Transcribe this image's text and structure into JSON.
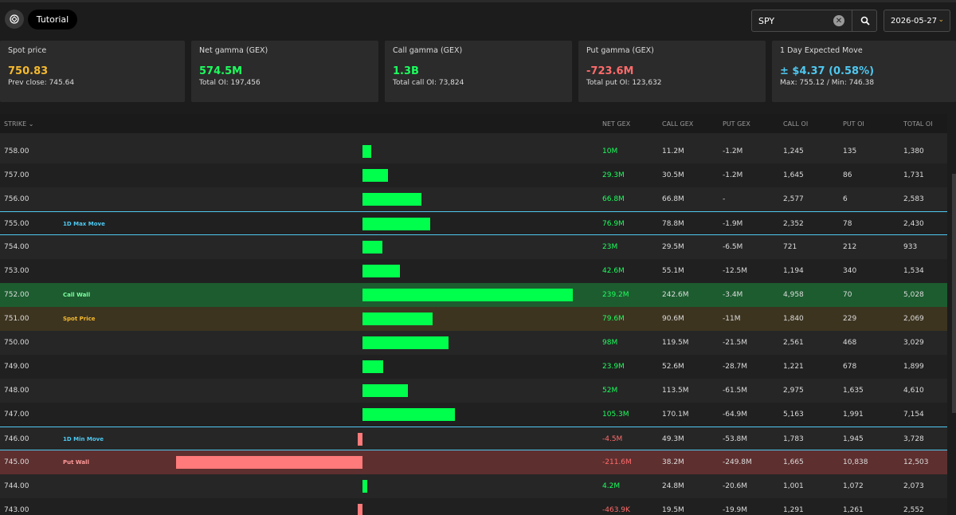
{
  "header": {
    "tutorial_label": "Tutorial",
    "search_value": "SPY",
    "date_value": "2026-05-27"
  },
  "cards": [
    {
      "label": "Spot price",
      "value": "750.83",
      "sub": "Prev close: 745.64",
      "color": "#f5b92e"
    },
    {
      "label": "Net gamma (GEX)",
      "value": "574.5M",
      "sub": "Total OI: 197,456",
      "color": "#1dff5e"
    },
    {
      "label": "Call gamma (GEX)",
      "value": "1.3B",
      "sub": "Total call OI: 73,824",
      "color": "#1dff5e"
    },
    {
      "label": "Put gamma (GEX)",
      "value": "-723.6M",
      "sub": "Total put OI: 123,632",
      "color": "#ff6b6b"
    },
    {
      "label": "1 Day Expected Move",
      "value": "± $4.37 (0.58%)",
      "sub": "Max: 755.12 / Min: 746.38",
      "color": "#4fc8f0"
    }
  ],
  "table": {
    "columns": [
      "STRIKE",
      "NET GEX",
      "CALL GEX",
      "PUT GEX",
      "CALL OI",
      "PUT OI",
      "TOTAL OI"
    ],
    "rows": [
      {
        "strike": "758.00",
        "tag": "",
        "net": "10M",
        "net_value": 10,
        "call": "11.2M",
        "put": "-1.2M",
        "coi": "1,245",
        "poi": "135",
        "toi": "1,380",
        "kind": "normal"
      },
      {
        "strike": "757.00",
        "tag": "",
        "net": "29.3M",
        "net_value": 29.3,
        "call": "30.5M",
        "put": "-1.2M",
        "coi": "1,645",
        "poi": "86",
        "toi": "1,731",
        "kind": "normal"
      },
      {
        "strike": "756.00",
        "tag": "",
        "net": "66.8M",
        "net_value": 66.8,
        "call": "66.8M",
        "put": "-",
        "coi": "2,577",
        "poi": "6",
        "toi": "2,583",
        "kind": "normal"
      },
      {
        "strike": "755.00",
        "tag": "1D Max Move",
        "net": "76.9M",
        "net_value": 76.9,
        "call": "78.8M",
        "put": "-1.9M",
        "coi": "2,352",
        "poi": "78",
        "toi": "2,430",
        "kind": "maxmove"
      },
      {
        "strike": "754.00",
        "tag": "",
        "net": "23M",
        "net_value": 23,
        "call": "29.5M",
        "put": "-6.5M",
        "coi": "721",
        "poi": "212",
        "toi": "933",
        "kind": "normal"
      },
      {
        "strike": "753.00",
        "tag": "",
        "net": "42.6M",
        "net_value": 42.6,
        "call": "55.1M",
        "put": "-12.5M",
        "coi": "1,194",
        "poi": "340",
        "toi": "1,534",
        "kind": "normal"
      },
      {
        "strike": "752.00",
        "tag": "Call Wall",
        "net": "239.2M",
        "net_value": 239.2,
        "call": "242.6M",
        "put": "-3.4M",
        "coi": "4,958",
        "poi": "70",
        "toi": "5,028",
        "kind": "callwall"
      },
      {
        "strike": "751.00",
        "tag": "Spot Price",
        "net": "79.6M",
        "net_value": 79.6,
        "call": "90.6M",
        "put": "-11M",
        "coi": "1,840",
        "poi": "229",
        "toi": "2,069",
        "kind": "spot"
      },
      {
        "strike": "750.00",
        "tag": "",
        "net": "98M",
        "net_value": 98,
        "call": "119.5M",
        "put": "-21.5M",
        "coi": "2,561",
        "poi": "468",
        "toi": "3,029",
        "kind": "normal"
      },
      {
        "strike": "749.00",
        "tag": "",
        "net": "23.9M",
        "net_value": 23.9,
        "call": "52.6M",
        "put": "-28.7M",
        "coi": "1,221",
        "poi": "678",
        "toi": "1,899",
        "kind": "normal"
      },
      {
        "strike": "748.00",
        "tag": "",
        "net": "52M",
        "net_value": 52,
        "call": "113.5M",
        "put": "-61.5M",
        "coi": "2,975",
        "poi": "1,635",
        "toi": "4,610",
        "kind": "normal"
      },
      {
        "strike": "747.00",
        "tag": "",
        "net": "105.3M",
        "net_value": 105.3,
        "call": "170.1M",
        "put": "-64.9M",
        "coi": "5,163",
        "poi": "1,991",
        "toi": "7,154",
        "kind": "normal"
      },
      {
        "strike": "746.00",
        "tag": "1D Min Move",
        "net": "-4.5M",
        "net_value": -4.5,
        "call": "49.3M",
        "put": "-53.8M",
        "coi": "1,783",
        "poi": "1,945",
        "toi": "3,728",
        "kind": "minmove"
      },
      {
        "strike": "745.00",
        "tag": "Put Wall",
        "net": "-211.6M",
        "net_value": -211.6,
        "call": "38.2M",
        "put": "-249.8M",
        "coi": "1,665",
        "poi": "10,838",
        "toi": "12,503",
        "kind": "putwall"
      },
      {
        "strike": "744.00",
        "tag": "",
        "net": "4.2M",
        "net_value": 4.2,
        "call": "24.8M",
        "put": "-20.6M",
        "coi": "1,001",
        "poi": "1,072",
        "toi": "2,073",
        "kind": "normal"
      },
      {
        "strike": "743.00",
        "tag": "",
        "net": "-463.9K",
        "net_value": -0.4639,
        "call": "19.5M",
        "put": "-19.9M",
        "coi": "1,291",
        "poi": "1,261",
        "toi": "2,552",
        "kind": "normal"
      }
    ]
  },
  "colors": {
    "positive": "#00ff4c",
    "negative": "#ff7a7a",
    "accent_cyan": "#4fc8f0",
    "call_wall_bg": "#1c5c2f",
    "spot_bg": "#3d3420",
    "put_wall_bg": "#5e2f2f"
  }
}
